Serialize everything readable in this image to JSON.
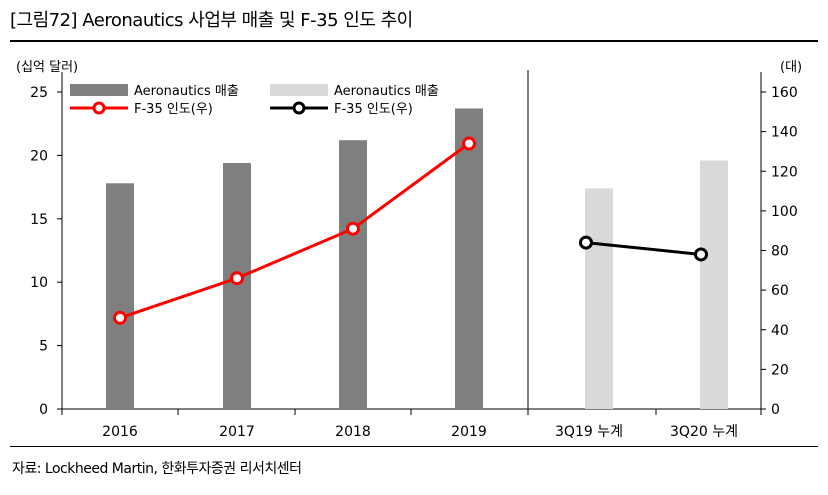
{
  "title": "[그림72]  Aeronautics 사업부 매출 및 F-35 인도 추이",
  "source": "자료: Lockheed Martin, 한화투자증권 리서치센터",
  "colors": {
    "dark_bar": "#7f7f7f",
    "light_bar": "#d9d9d9",
    "red_line": "#ff0000",
    "black_line": "#000000"
  },
  "chart_data": [
    {
      "type": "bar",
      "panel": "left",
      "ylabel": "(십억 달러)",
      "ylim": [
        0,
        25
      ],
      "yticks": [
        "0",
        "5",
        "10",
        "15",
        "20",
        "25"
      ],
      "categories": [
        "2016",
        "2017",
        "2018",
        "2019"
      ],
      "series": [
        {
          "name": "Aeronautics  매출",
          "type": "bar",
          "axis": "left",
          "values": [
            17.8,
            19.4,
            21.2,
            23.7
          ]
        },
        {
          "name": "F-35  인도(우)",
          "type": "line",
          "axis": "right",
          "values": [
            46,
            66,
            91,
            134
          ]
        }
      ],
      "legend": "top-left"
    },
    {
      "type": "bar",
      "panel": "right",
      "y2label": "(대)",
      "y2lim": [
        0,
        160
      ],
      "y2ticks": [
        "0",
        "20",
        "40",
        "60",
        "80",
        "100",
        "120",
        "140",
        "160"
      ],
      "categories": [
        "3Q19  누계",
        "3Q20  누계"
      ],
      "series": [
        {
          "name": "Aeronautics  매출",
          "type": "bar",
          "axis": "left",
          "values": [
            17.4,
            19.6
          ]
        },
        {
          "name": "F-35  인도(우)",
          "type": "line",
          "axis": "right",
          "values": [
            84,
            78
          ]
        }
      ],
      "legend": "top-center"
    }
  ]
}
